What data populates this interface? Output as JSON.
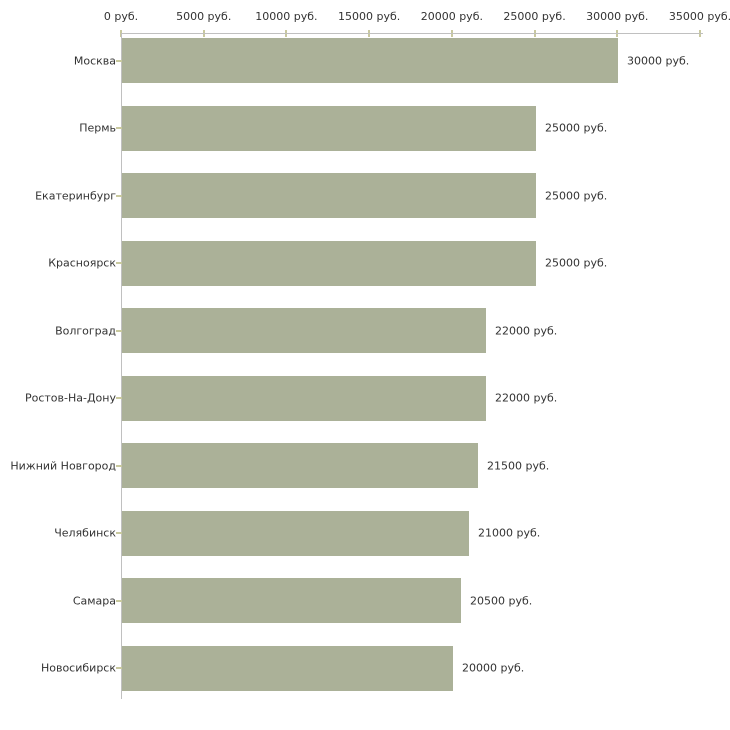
{
  "chart_data": {
    "type": "bar",
    "orientation": "horizontal",
    "unit": "руб.",
    "categories": [
      "Москва",
      "Пермь",
      "Екатеринбург",
      "Красноярск",
      "Волгоград",
      "Ростов-На-Дону",
      "Нижний Новгород",
      "Челябинск",
      "Самара",
      "Новосибирск"
    ],
    "values": [
      30000,
      25000,
      25000,
      25000,
      22000,
      22000,
      21500,
      21000,
      20500,
      20000
    ],
    "value_labels": [
      "30000 руб.",
      "25000 руб.",
      "25000 руб.",
      "25000 руб.",
      "22000 руб.",
      "22000 руб.",
      "21500 руб.",
      "21000 руб.",
      "20500 руб.",
      "20000 руб."
    ],
    "x_ticks": [
      0,
      5000,
      10000,
      15000,
      20000,
      25000,
      30000,
      35000
    ],
    "x_tick_labels": [
      "0 руб.",
      "5000 руб.",
      "10000 руб.",
      "15000 руб.",
      "20000 руб.",
      "25000 руб.",
      "30000 руб.",
      "35000 руб."
    ],
    "xlim": [
      0,
      35000
    ],
    "grid": "off",
    "legend": "none",
    "colors": {
      "bar": "#ABB198",
      "axis": "#C0C0C0",
      "tick": "#C9C99F",
      "text": "#333333",
      "background": "#FFFFFF"
    }
  }
}
